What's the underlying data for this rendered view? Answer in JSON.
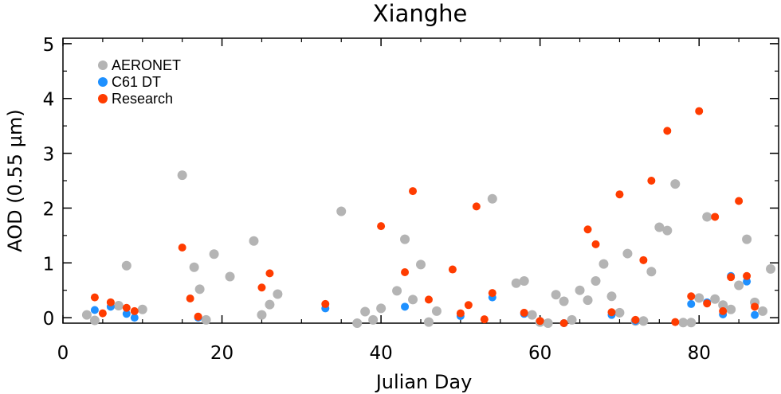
{
  "chart_data": {
    "type": "scatter",
    "title": "Xianghe",
    "xlabel": "Julian Day",
    "ylabel": "AOD (0.55 µm)",
    "xlim": [
      0,
      90
    ],
    "ylim": [
      -0.1,
      5.1
    ],
    "xticks": [
      0,
      20,
      40,
      60,
      80
    ],
    "yticks": [
      0,
      1,
      2,
      3,
      4,
      5
    ],
    "grid": false,
    "legend_position": "top-left",
    "series": [
      {
        "name": "AERONET",
        "color": "#b4b4b4",
        "points": [
          [
            3,
            0.05
          ],
          [
            4,
            -0.05
          ],
          [
            7,
            0.22
          ],
          [
            8,
            0.95
          ],
          [
            10,
            0.15
          ],
          [
            15,
            2.6
          ],
          [
            16.5,
            0.92
          ],
          [
            17.2,
            0.52
          ],
          [
            18,
            -0.04
          ],
          [
            19,
            1.16
          ],
          [
            21,
            0.75
          ],
          [
            24,
            1.4
          ],
          [
            25,
            0.05
          ],
          [
            26,
            0.24
          ],
          [
            27,
            0.43
          ],
          [
            35,
            1.94
          ],
          [
            37,
            -0.1
          ],
          [
            38,
            0.11
          ],
          [
            39,
            -0.04
          ],
          [
            40,
            0.17
          ],
          [
            42,
            0.49
          ],
          [
            43,
            1.43
          ],
          [
            44,
            0.33
          ],
          [
            45,
            0.97
          ],
          [
            46,
            -0.08
          ],
          [
            47,
            0.12
          ],
          [
            54,
            2.17
          ],
          [
            57,
            0.63
          ],
          [
            58,
            0.67
          ],
          [
            59,
            0.05
          ],
          [
            60,
            -0.08
          ],
          [
            61,
            -0.1
          ],
          [
            62,
            0.42
          ],
          [
            63,
            0.3
          ],
          [
            64,
            -0.04
          ],
          [
            65,
            0.5
          ],
          [
            66,
            0.32
          ],
          [
            67,
            0.67
          ],
          [
            68,
            0.98
          ],
          [
            69,
            0.39
          ],
          [
            70,
            0.09
          ],
          [
            71,
            1.17
          ],
          [
            72,
            -0.06
          ],
          [
            73,
            -0.06
          ],
          [
            74,
            0.84
          ],
          [
            75,
            1.65
          ],
          [
            76,
            1.59
          ],
          [
            77,
            2.44
          ],
          [
            78,
            -0.09
          ],
          [
            79,
            -0.09
          ],
          [
            80,
            0.36
          ],
          [
            81,
            1.84
          ],
          [
            82,
            0.34
          ],
          [
            83,
            0.23
          ],
          [
            84,
            0.15
          ],
          [
            85,
            0.59
          ],
          [
            86,
            1.43
          ],
          [
            87,
            0.28
          ],
          [
            88,
            0.12
          ],
          [
            89,
            0.89
          ]
        ]
      },
      {
        "name": "C61 DT",
        "color": "#1e90ff",
        "points": [
          [
            4,
            0.14
          ],
          [
            6,
            0.2
          ],
          [
            8,
            0.07
          ],
          [
            9,
            0.0
          ],
          [
            17,
            0.0
          ],
          [
            33,
            0.17
          ],
          [
            43,
            0.2
          ],
          [
            50,
            0.03
          ],
          [
            54,
            0.37
          ],
          [
            58,
            0.07
          ],
          [
            63,
            -0.1
          ],
          [
            69,
            0.05
          ],
          [
            72,
            -0.06
          ],
          [
            79,
            0.25
          ],
          [
            81,
            0.28
          ],
          [
            83,
            0.06
          ],
          [
            84,
            0.76
          ],
          [
            86,
            0.66
          ],
          [
            87,
            0.05
          ]
        ]
      },
      {
        "name": "Research",
        "color": "#ff3c00",
        "points": [
          [
            4,
            0.37
          ],
          [
            5,
            0.08
          ],
          [
            6,
            0.28
          ],
          [
            8,
            0.18
          ],
          [
            9,
            0.12
          ],
          [
            15,
            1.28
          ],
          [
            16,
            0.35
          ],
          [
            17,
            0.02
          ],
          [
            25,
            0.55
          ],
          [
            26,
            0.81
          ],
          [
            33,
            0.25
          ],
          [
            40,
            1.67
          ],
          [
            43,
            0.83
          ],
          [
            44,
            2.31
          ],
          [
            46,
            0.33
          ],
          [
            49,
            0.88
          ],
          [
            50,
            0.08
          ],
          [
            51,
            0.23
          ],
          [
            52,
            2.03
          ],
          [
            53,
            -0.03
          ],
          [
            54,
            0.45
          ],
          [
            58,
            0.09
          ],
          [
            60,
            -0.06
          ],
          [
            63,
            -0.1
          ],
          [
            66,
            1.61
          ],
          [
            67,
            1.34
          ],
          [
            69,
            0.1
          ],
          [
            70,
            2.25
          ],
          [
            72,
            -0.04
          ],
          [
            73,
            1.05
          ],
          [
            74,
            2.5
          ],
          [
            76,
            3.41
          ],
          [
            77,
            -0.08
          ],
          [
            79,
            0.39
          ],
          [
            80,
            3.77
          ],
          [
            81,
            0.26
          ],
          [
            82,
            1.84
          ],
          [
            83,
            0.12
          ],
          [
            84,
            0.74
          ],
          [
            85,
            2.13
          ],
          [
            86,
            0.76
          ],
          [
            87,
            0.2
          ]
        ]
      }
    ]
  }
}
